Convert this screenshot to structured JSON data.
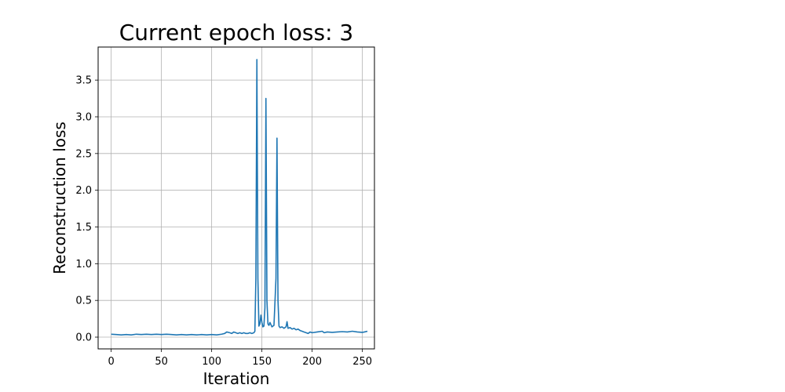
{
  "chart_data": {
    "type": "line",
    "title": "Current epoch loss: 3",
    "xlabel": "Iteration",
    "ylabel": "Reconstruction loss",
    "xlim": [
      -13,
      262
    ],
    "ylim": [
      -0.16,
      3.95
    ],
    "xticks": [
      0,
      50,
      100,
      150,
      200,
      250
    ],
    "yticks": [
      0.0,
      0.5,
      1.0,
      1.5,
      2.0,
      2.5,
      3.0,
      3.5
    ],
    "xtick_labels": [
      "0",
      "50",
      "100",
      "150",
      "200",
      "250"
    ],
    "ytick_labels": [
      "0.0",
      "0.5",
      "1.0",
      "1.5",
      "2.0",
      "2.5",
      "3.0",
      "3.5"
    ],
    "grid": true,
    "line_color": "#1f77b4",
    "series": [
      {
        "x": [
          0,
          5,
          10,
          15,
          20,
          25,
          30,
          35,
          40,
          45,
          50,
          55,
          60,
          65,
          70,
          75,
          80,
          85,
          90,
          95,
          100,
          105,
          110,
          113,
          115,
          118,
          120,
          122,
          124,
          126,
          128,
          130,
          132,
          134,
          136,
          138,
          140,
          142,
          143,
          144,
          145,
          146,
          147,
          148,
          149,
          150,
          151,
          152,
          153,
          154,
          155,
          156,
          157,
          158,
          160,
          162,
          164,
          165,
          166,
          167,
          168,
          170,
          172,
          174,
          175,
          176,
          178,
          180,
          182,
          184,
          186,
          188,
          190,
          192,
          194,
          196,
          198,
          200,
          205,
          210,
          212,
          215,
          220,
          225,
          230,
          235,
          240,
          245,
          250,
          252,
          255
        ],
        "y": [
          0.04,
          0.035,
          0.03,
          0.035,
          0.03,
          0.04,
          0.035,
          0.04,
          0.035,
          0.04,
          0.035,
          0.04,
          0.035,
          0.03,
          0.035,
          0.03,
          0.035,
          0.03,
          0.035,
          0.03,
          0.035,
          0.03,
          0.04,
          0.05,
          0.07,
          0.06,
          0.05,
          0.07,
          0.06,
          0.05,
          0.06,
          0.05,
          0.06,
          0.05,
          0.05,
          0.06,
          0.05,
          0.06,
          0.08,
          0.8,
          3.78,
          0.8,
          0.15,
          0.18,
          0.3,
          0.2,
          0.14,
          0.15,
          0.4,
          3.25,
          0.5,
          0.18,
          0.16,
          0.2,
          0.14,
          0.16,
          0.8,
          2.71,
          0.5,
          0.15,
          0.13,
          0.14,
          0.12,
          0.14,
          0.21,
          0.12,
          0.13,
          0.11,
          0.12,
          0.1,
          0.11,
          0.09,
          0.08,
          0.07,
          0.06,
          0.05,
          0.07,
          0.06,
          0.07,
          0.08,
          0.06,
          0.07,
          0.065,
          0.07,
          0.075,
          0.07,
          0.08,
          0.07,
          0.065,
          0.07,
          0.08
        ]
      }
    ]
  }
}
